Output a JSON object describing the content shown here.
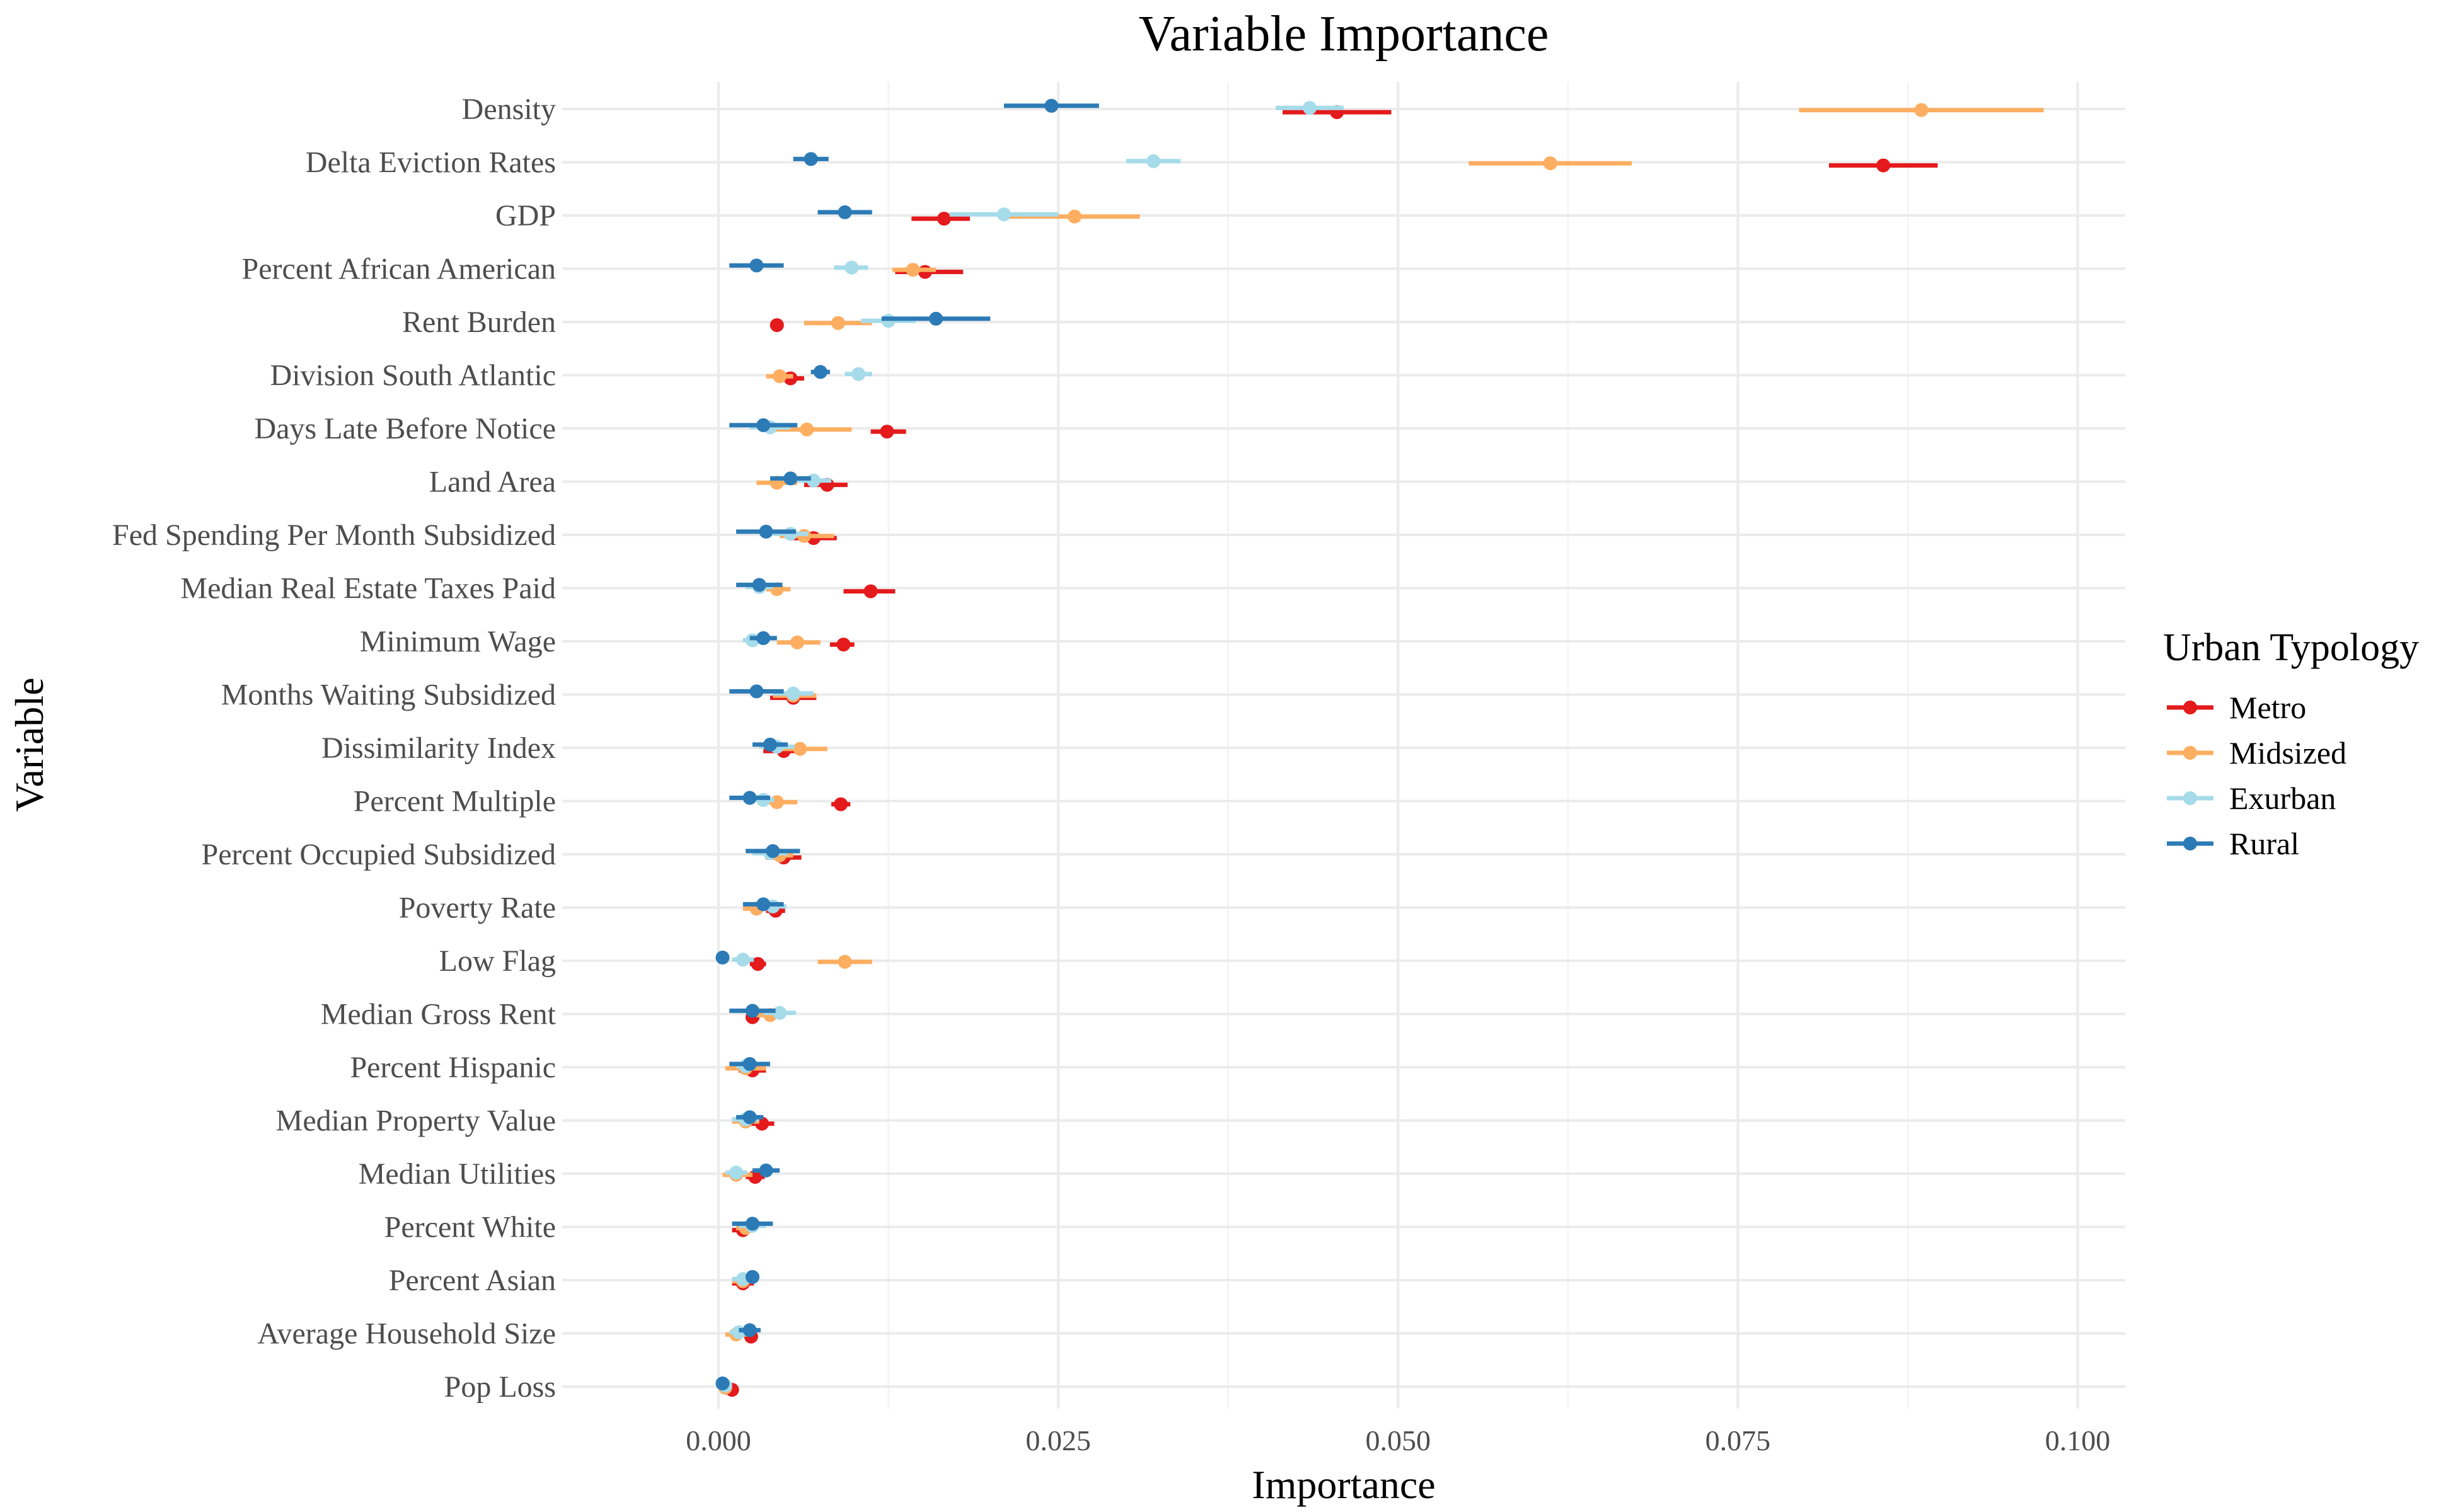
{
  "chart_data": {
    "type": "scatter",
    "title": "Variable Importance",
    "xlabel": "Importance",
    "ylabel": "Variable",
    "xlim": [
      -0.0115,
      0.1035
    ],
    "xticks": [
      0.0,
      0.025,
      0.05,
      0.075,
      0.1
    ],
    "xtick_labels": [
      "0.000",
      "0.025",
      "0.050",
      "0.075",
      "0.100"
    ],
    "grid": true,
    "legend": {
      "title": "Urban Typology",
      "position": "right"
    },
    "categories": [
      "Density",
      "Delta Eviction Rates",
      "GDP",
      "Percent African American",
      "Rent Burden",
      "Division South Atlantic",
      "Days Late Before Notice",
      "Land Area",
      "Fed Spending Per Month Subsidized",
      "Median Real Estate Taxes Paid",
      "Minimum Wage",
      "Months Waiting Subsidized",
      "Dissimilarity Index",
      "Percent Multiple",
      "Percent Occupied Subsidized",
      "Poverty Rate",
      "Low Flag",
      "Median Gross Rent",
      "Percent Hispanic",
      "Median Property Value",
      "Median Utilities",
      "Percent White",
      "Percent Asian",
      "Average Household Size",
      "Pop Loss"
    ],
    "series": [
      {
        "name": "Metro",
        "color": "#e41a1c",
        "offset": 0.06,
        "values": [
          0.0455,
          0.0857,
          0.0166,
          0.0152,
          0.0043,
          0.0053,
          0.0124,
          0.008,
          0.007,
          0.0112,
          0.0092,
          0.0055,
          0.0048,
          0.009,
          0.0048,
          0.0042,
          0.0029,
          0.0025,
          0.0025,
          0.0032,
          0.0027,
          0.0018,
          0.0018,
          0.0024,
          0.001
        ],
        "lower": [
          0.0415,
          0.0817,
          0.0142,
          0.013,
          0.0038,
          0.0043,
          0.0112,
          0.0063,
          0.0053,
          0.0092,
          0.0082,
          0.0038,
          0.0033,
          0.0083,
          0.0035,
          0.0035,
          0.0023,
          0.002,
          0.0015,
          0.0023,
          0.002,
          0.001,
          0.001,
          0.002,
          0.0006
        ],
        "upper": [
          0.0495,
          0.0897,
          0.0185,
          0.018,
          0.0048,
          0.0063,
          0.0138,
          0.0095,
          0.0087,
          0.013,
          0.01,
          0.0072,
          0.0063,
          0.0097,
          0.0061,
          0.0049,
          0.0035,
          0.003,
          0.0035,
          0.0041,
          0.0034,
          0.0026,
          0.0026,
          0.0028,
          0.0014
        ]
      },
      {
        "name": "Midsized",
        "color": "#fdae61",
        "offset": 0.02,
        "values": [
          0.0885,
          0.0612,
          0.0262,
          0.0143,
          0.0088,
          0.0045,
          0.0065,
          0.0043,
          0.0063,
          0.0043,
          0.0058,
          0.0055,
          0.006,
          0.0043,
          0.0045,
          0.0028,
          0.0093,
          0.0038,
          0.002,
          0.002,
          0.0013,
          0.002,
          0.0018,
          0.0013,
          0.0005
        ],
        "lower": [
          0.0795,
          0.0552,
          0.0212,
          0.0128,
          0.0063,
          0.0035,
          0.0035,
          0.0028,
          0.0045,
          0.0035,
          0.0043,
          0.004,
          0.004,
          0.0033,
          0.0035,
          0.0018,
          0.0073,
          0.0028,
          0.0005,
          0.001,
          0.0003,
          0.0013,
          0.001,
          0.0005,
          0.0002
        ],
        "upper": [
          0.0975,
          0.0672,
          0.031,
          0.016,
          0.0113,
          0.0055,
          0.0098,
          0.0058,
          0.0085,
          0.0053,
          0.0075,
          0.0072,
          0.008,
          0.0058,
          0.0055,
          0.0038,
          0.0113,
          0.0048,
          0.0035,
          0.003,
          0.0025,
          0.0027,
          0.0026,
          0.0023,
          0.0008
        ]
      },
      {
        "name": "Exurban",
        "color": "#a6dbea",
        "offset": -0.02,
        "values": [
          0.0435,
          0.032,
          0.021,
          0.0098,
          0.0125,
          0.0103,
          0.0038,
          0.007,
          0.0053,
          0.003,
          0.0025,
          0.0055,
          0.0043,
          0.0033,
          0.0038,
          0.004,
          0.0018,
          0.0045,
          0.002,
          0.002,
          0.0013,
          0.0025,
          0.0018,
          0.0015,
          0.0005
        ],
        "lower": [
          0.041,
          0.03,
          0.017,
          0.0085,
          0.0105,
          0.0093,
          0.0023,
          0.0058,
          0.004,
          0.002,
          0.0018,
          0.004,
          0.003,
          0.0025,
          0.0025,
          0.003,
          0.001,
          0.0033,
          0.0013,
          0.001,
          0.0005,
          0.0015,
          0.001,
          0.0008,
          0.0002
        ],
        "upper": [
          0.046,
          0.034,
          0.025,
          0.011,
          0.0145,
          0.0113,
          0.0053,
          0.0083,
          0.0066,
          0.004,
          0.0032,
          0.007,
          0.0056,
          0.0041,
          0.0051,
          0.005,
          0.0026,
          0.0057,
          0.0027,
          0.003,
          0.0021,
          0.0035,
          0.0026,
          0.0022,
          0.0008
        ]
      },
      {
        "name": "Rural",
        "color": "#2c7bb6",
        "offset": -0.06,
        "values": [
          0.0245,
          0.0068,
          0.0093,
          0.0028,
          0.016,
          0.0075,
          0.0033,
          0.0053,
          0.0035,
          0.003,
          0.0033,
          0.0028,
          0.0038,
          0.0023,
          0.004,
          0.0033,
          0.0003,
          0.0025,
          0.0023,
          0.0023,
          0.0035,
          0.0025,
          0.0025,
          0.0023,
          0.0003
        ],
        "lower": [
          0.021,
          0.0055,
          0.0073,
          0.0008,
          0.012,
          0.0068,
          0.0008,
          0.0038,
          0.0013,
          0.0013,
          0.0023,
          0.0008,
          0.0025,
          0.0008,
          0.002,
          0.0018,
          0.0001,
          0.0008,
          0.0008,
          0.0013,
          0.0025,
          0.001,
          0.002,
          0.0015,
          0.0001
        ],
        "upper": [
          0.028,
          0.0081,
          0.0113,
          0.0048,
          0.02,
          0.0082,
          0.0058,
          0.0068,
          0.0057,
          0.0047,
          0.0043,
          0.0048,
          0.0051,
          0.0038,
          0.006,
          0.0048,
          0.0005,
          0.0042,
          0.0038,
          0.0033,
          0.0045,
          0.004,
          0.003,
          0.0031,
          0.0005
        ]
      }
    ]
  }
}
